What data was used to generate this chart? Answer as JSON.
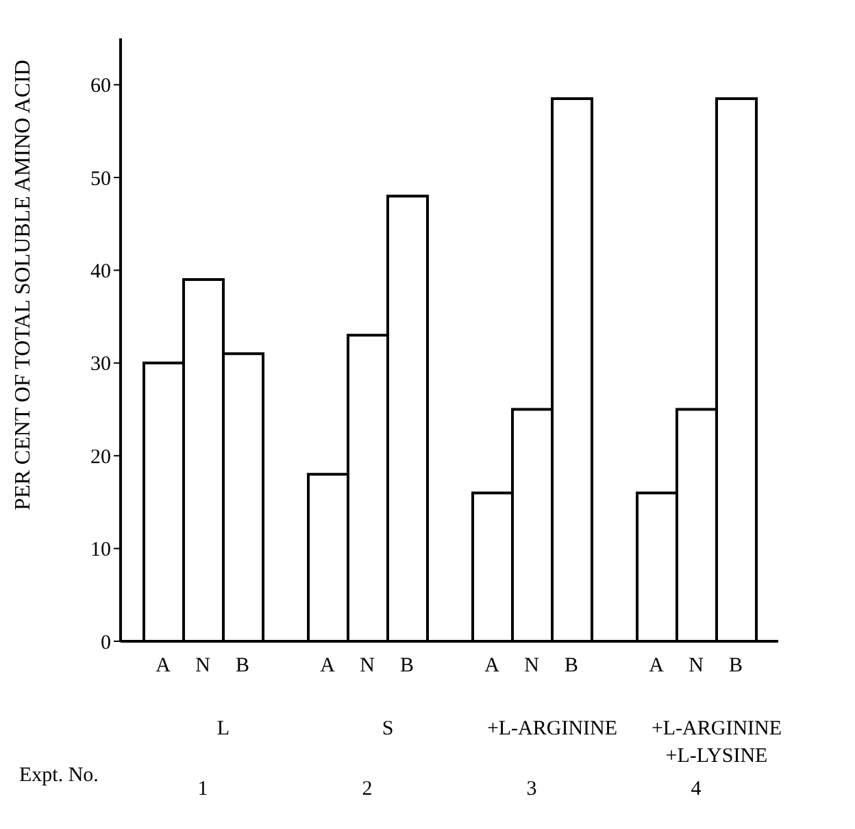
{
  "chart_data": {
    "type": "bar",
    "ylabel": "PER CENT OF TOTAL SOLUBLE AMINO ACID",
    "xlabel": "Expt. No.",
    "categories": [
      "L",
      "S",
      "+L-ARGININE",
      "+L-ARGININE +L-LYSINE"
    ],
    "series": [
      {
        "name": "A",
        "color": "#ffffff",
        "values": [
          30,
          18,
          16,
          16
        ]
      },
      {
        "name": "N",
        "color": "#ffffff",
        "values": [
          39,
          33,
          25,
          25
        ]
      },
      {
        "name": "B",
        "color": "#ffffff",
        "values": [
          31,
          48,
          58.5,
          58.5
        ]
      }
    ],
    "ylim": [
      0,
      65
    ],
    "yticks": [
      0,
      10,
      20,
      30,
      40,
      50,
      60
    ],
    "annotations": [
      "1",
      "2",
      "3",
      "4"
    ]
  }
}
